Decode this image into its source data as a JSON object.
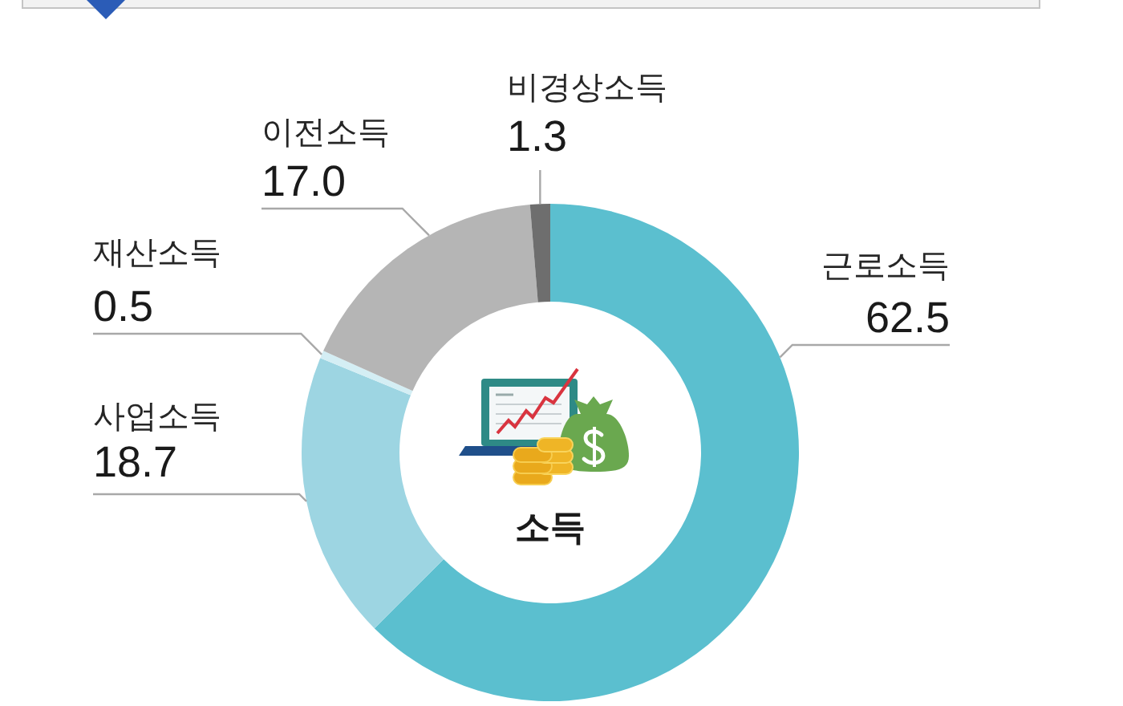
{
  "chart_data": {
    "type": "donut",
    "title": "소득",
    "categories": [
      "근로소득",
      "사업소득",
      "재산소득",
      "이전소득",
      "비경상소득"
    ],
    "values": [
      62.5,
      18.7,
      0.5,
      17.0,
      1.3
    ],
    "value_labels": [
      "62.5",
      "18.7",
      "0.5",
      "17.0",
      "1.3"
    ],
    "colors": [
      "#5bbfcf",
      "#9dd5e2",
      "#d4eef4",
      "#b5b5b5",
      "#6e6e6e"
    ]
  }
}
